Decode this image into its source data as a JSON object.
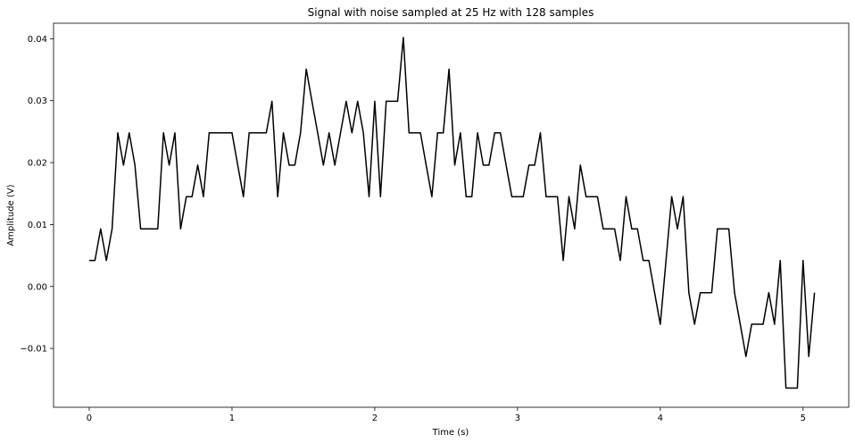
{
  "chart_data": {
    "type": "line",
    "title": "Signal with noise sampled at 25 Hz with 128 samples",
    "xlabel": "Time (s)",
    "ylabel": "Amplitude (V)",
    "xlim": [
      -0.25,
      5.32
    ],
    "ylim": [
      -0.0195,
      0.0425
    ],
    "x_ticks": [
      0,
      1,
      2,
      3,
      4,
      5
    ],
    "x_tick_labels": [
      "0",
      "1",
      "2",
      "3",
      "4",
      "5"
    ],
    "y_ticks": [
      -0.01,
      0.0,
      0.01,
      0.02,
      0.03,
      0.04
    ],
    "y_tick_labels": [
      "−0.01",
      "0.00",
      "0.01",
      "0.02",
      "0.03",
      "0.04"
    ],
    "grid": false,
    "line_color": "#000000",
    "sample_interval": 0.04,
    "series": [
      {
        "x": [
          0,
          0.04,
          0.08,
          0.12,
          0.16,
          0.2,
          0.24,
          0.28,
          0.32,
          0.36,
          0.4,
          0.44,
          0.48,
          0.52,
          0.56,
          0.6,
          0.64,
          0.68,
          0.72,
          0.76,
          0.8,
          0.84,
          0.88,
          0.92,
          0.96,
          1.0,
          1.04,
          1.08,
          1.12,
          1.16,
          1.2,
          1.24,
          1.28,
          1.32,
          1.36,
          1.4,
          1.44,
          1.48,
          1.52,
          1.56,
          1.6,
          1.64,
          1.68,
          1.72,
          1.76,
          1.8,
          1.84,
          1.88,
          1.92,
          1.96,
          2.0,
          2.04,
          2.08,
          2.12,
          2.16,
          2.2,
          2.24,
          2.28,
          2.32,
          2.36,
          2.4,
          2.44,
          2.48,
          2.52,
          2.56,
          2.6,
          2.64,
          2.68,
          2.72,
          2.76,
          2.8,
          2.84,
          2.88,
          2.92,
          2.96,
          3.0,
          3.04,
          3.08,
          3.12,
          3.16,
          3.2,
          3.24,
          3.28,
          3.32,
          3.36,
          3.4,
          3.44,
          3.48,
          3.52,
          3.56,
          3.6,
          3.64,
          3.68,
          3.72,
          3.76,
          3.8,
          3.84,
          3.88,
          3.92,
          3.96,
          4.0,
          4.04,
          4.08,
          4.12,
          4.16,
          4.2,
          4.24,
          4.28,
          4.32,
          4.36,
          4.4,
          4.44,
          4.48,
          4.52,
          4.56,
          4.6,
          4.64,
          4.68,
          4.72,
          4.76,
          4.8,
          4.84,
          4.88,
          4.92,
          4.96,
          5.0,
          5.04,
          5.08
        ],
        "y": [
          0.0042,
          0.0042,
          0.0093,
          0.0042,
          0.0093,
          0.0248,
          0.0196,
          0.0248,
          0.0196,
          0.0093,
          0.0093,
          0.0093,
          0.0093,
          0.0248,
          0.0196,
          0.0248,
          0.0093,
          0.0145,
          0.0145,
          0.0196,
          0.0145,
          0.0248,
          0.0248,
          0.0248,
          0.0248,
          0.0248,
          0.0196,
          0.0145,
          0.0248,
          0.0248,
          0.0248,
          0.0248,
          0.0299,
          0.0145,
          0.0248,
          0.0196,
          0.0196,
          0.0248,
          0.0351,
          0.0299,
          0.0248,
          0.0196,
          0.0248,
          0.0196,
          0.0248,
          0.0299,
          0.0248,
          0.0299,
          0.0248,
          0.0145,
          0.0299,
          0.0145,
          0.0299,
          0.0299,
          0.0299,
          0.0402,
          0.0248,
          0.0248,
          0.0248,
          0.0196,
          0.0145,
          0.0248,
          0.0248,
          0.0351,
          0.0196,
          0.0248,
          0.0145,
          0.0145,
          0.0248,
          0.0196,
          0.0196,
          0.0248,
          0.0248,
          0.0196,
          0.0145,
          0.0145,
          0.0145,
          0.0196,
          0.0196,
          0.0248,
          0.0145,
          0.0145,
          0.0145,
          0.0042,
          0.0145,
          0.0093,
          0.0196,
          0.0145,
          0.0145,
          0.0145,
          0.0093,
          0.0093,
          0.0093,
          0.0042,
          0.0145,
          0.0093,
          0.0093,
          0.0042,
          0.0042,
          -0.001,
          -0.0061,
          0.0042,
          0.0145,
          0.0093,
          0.0145,
          -0.001,
          -0.0061,
          -0.001,
          -0.001,
          -0.001,
          0.0093,
          0.0093,
          0.0093,
          -0.001,
          -0.0061,
          -0.0113,
          -0.0061,
          -0.0061,
          -0.0061,
          -0.001,
          -0.0061,
          0.0042,
          -0.0164,
          -0.0164,
          -0.0164,
          0.0042,
          -0.0113,
          -0.001
        ]
      }
    ]
  }
}
